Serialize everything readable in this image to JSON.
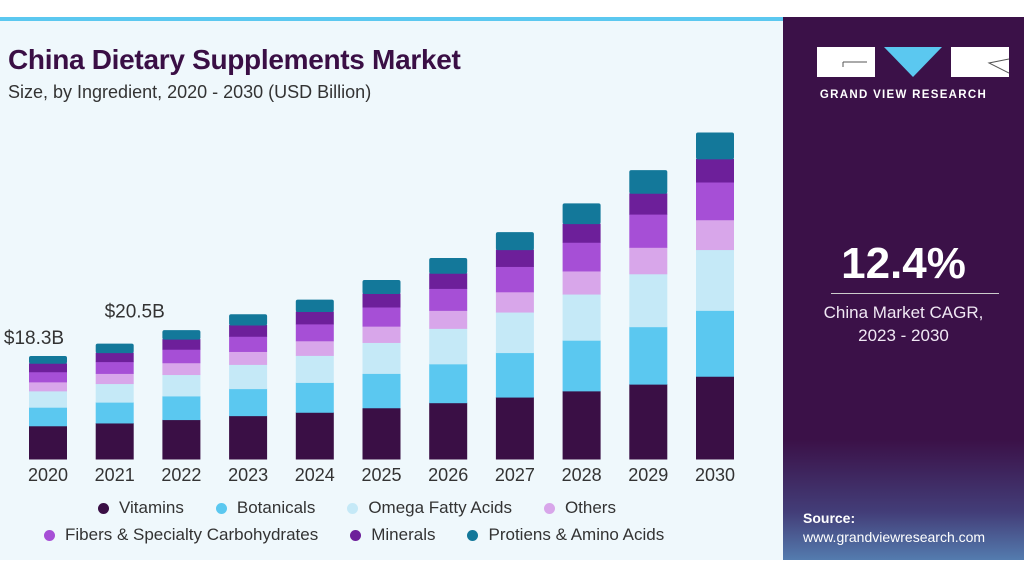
{
  "chart_data": {
    "type": "bar",
    "stacked": true,
    "title": "China Dietary Supplements Market",
    "subtitle": "Size, by Ingredient, 2020 - 2030 (USD Billion)",
    "categories": [
      "2020",
      "2021",
      "2022",
      "2023",
      "2024",
      "2025",
      "2026",
      "2027",
      "2028",
      "2029",
      "2030"
    ],
    "series": [
      {
        "name": "Vitamins",
        "color": "#3a0f45",
        "values": [
          5.9,
          6.4,
          7.0,
          7.7,
          8.3,
          9.1,
          10.0,
          11.0,
          12.1,
          13.3,
          14.7
        ]
      },
      {
        "name": "Botanicals",
        "color": "#5bc8f0",
        "values": [
          3.3,
          3.7,
          4.2,
          4.8,
          5.3,
          6.1,
          6.9,
          7.9,
          9.0,
          10.2,
          11.7
        ]
      },
      {
        "name": "Omega Fatty Acids",
        "color": "#c5e9f7",
        "values": [
          2.9,
          3.3,
          3.8,
          4.3,
          4.8,
          5.5,
          6.3,
          7.2,
          8.2,
          9.4,
          10.8
        ]
      },
      {
        "name": "Others",
        "color": "#d8a6ea",
        "values": [
          1.6,
          1.8,
          2.1,
          2.3,
          2.6,
          2.9,
          3.2,
          3.6,
          4.1,
          4.7,
          5.3
        ]
      },
      {
        "name": "Fibers & Specialty Carbohydrates",
        "color": "#a64fd6",
        "values": [
          1.8,
          2.1,
          2.4,
          2.7,
          3.0,
          3.4,
          3.9,
          4.5,
          5.1,
          5.9,
          6.7
        ]
      },
      {
        "name": "Minerals",
        "color": "#6d1f9a",
        "values": [
          1.5,
          1.6,
          1.8,
          2.0,
          2.2,
          2.4,
          2.7,
          3.0,
          3.3,
          3.7,
          4.1
        ]
      },
      {
        "name": "Protiens & Amino Acids",
        "color": "#13789a",
        "values": [
          1.3,
          1.6,
          1.6,
          1.9,
          2.1,
          2.4,
          2.7,
          3.1,
          3.6,
          4.1,
          4.7
        ]
      }
    ],
    "annotations": [
      {
        "category": "2020",
        "label": "$18.3B"
      },
      {
        "category": "2021",
        "label": "$20.5B"
      }
    ],
    "ylim": [
      0,
      60
    ],
    "grid": false,
    "legend_position": "bottom"
  },
  "panel": {
    "brand": "GRAND VIEW RESEARCH",
    "cagr_value": "12.4%",
    "cagr_label_line1": "China Market CAGR,",
    "cagr_label_line2": "2023 - 2030",
    "source_label": "Source:",
    "source_url": "www.grandviewresearch.com"
  }
}
